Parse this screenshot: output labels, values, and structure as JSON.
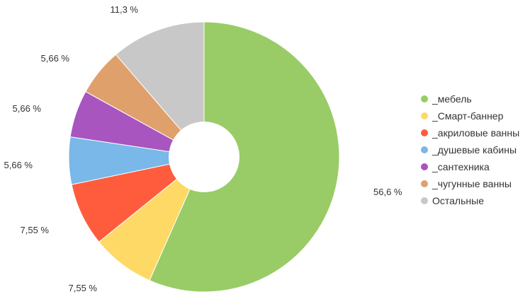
{
  "chart_data": {
    "type": "pie",
    "donut": true,
    "legend_position": "right",
    "slices": [
      {
        "name": "_мебель",
        "value": 56.6,
        "label": "56,6 %",
        "color": "#99cc66"
      },
      {
        "name": "_Смарт-баннер",
        "value": 7.55,
        "label": "7,55 %",
        "color": "#ffd966"
      },
      {
        "name": "_акриловые ванны",
        "value": 7.55,
        "label": "7,55 %",
        "color": "#ff5c3d"
      },
      {
        "name": "_душевые кабины",
        "value": 5.66,
        "label": "5,66 %",
        "color": "#79b8e8"
      },
      {
        "name": "_сантехника",
        "value": 5.66,
        "label": "5,66 %",
        "color": "#a855c0"
      },
      {
        "name": "_чугунные ванны",
        "value": 5.66,
        "label": "5,66 %",
        "color": "#dfa06c"
      },
      {
        "name": "Остальные",
        "value": 11.3,
        "label": "11,3 %",
        "color": "#c8c8c8"
      }
    ]
  }
}
